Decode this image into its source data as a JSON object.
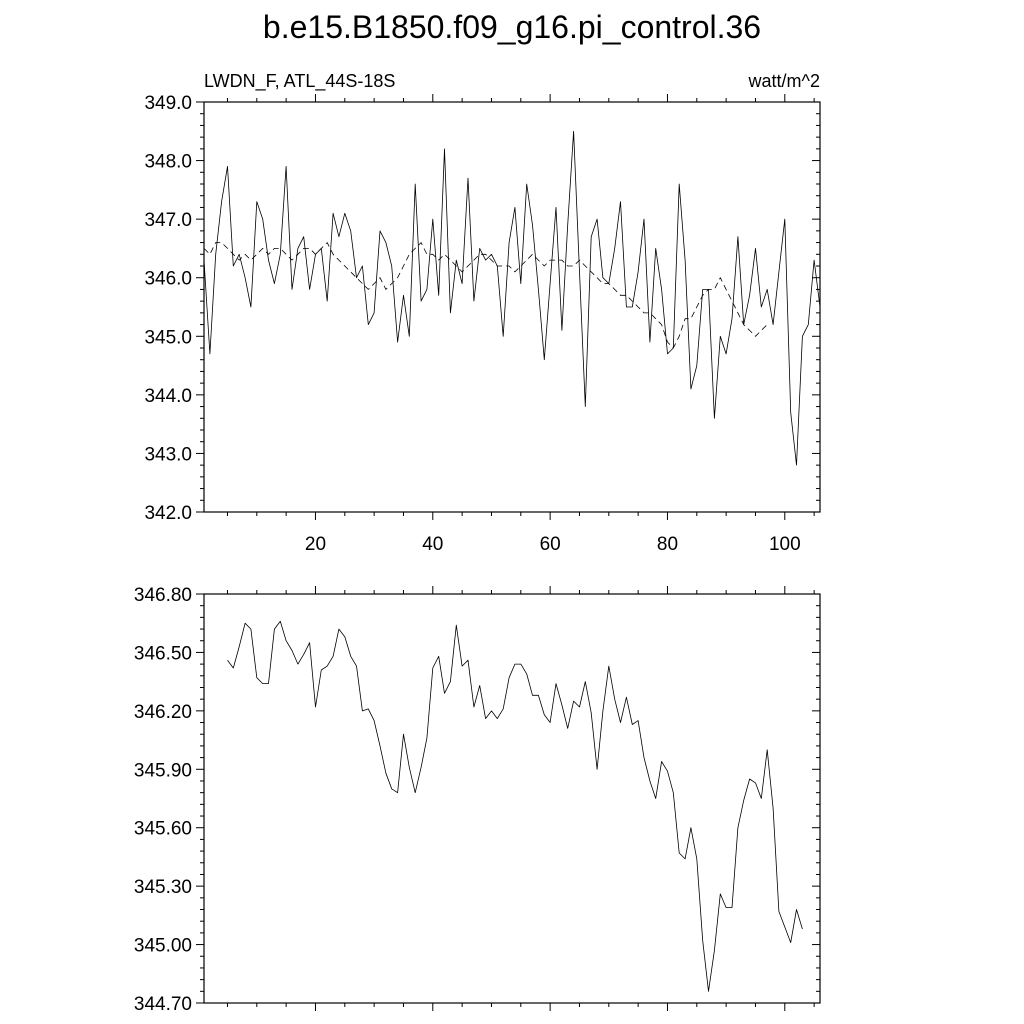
{
  "title": "b.e15.B1850.f09_g16.pi_control.36",
  "chart_data": [
    {
      "type": "line",
      "left_label": "LWDN_F, ATL_44S-18S",
      "right_label": "watt/m^2",
      "ylim": [
        342.0,
        349.0
      ],
      "yticks": [
        "342.0",
        "343.0",
        "344.0",
        "345.0",
        "346.0",
        "347.0",
        "348.0",
        "349.0"
      ],
      "xlim": [
        1,
        106
      ],
      "xticks": [
        "20",
        "40",
        "60",
        "80",
        "100"
      ],
      "series": [
        {
          "style": "solid",
          "x_start": 1,
          "values": [
            346.3,
            344.7,
            346.4,
            347.3,
            347.9,
            346.2,
            346.4,
            346.0,
            345.5,
            347.3,
            347.0,
            346.3,
            345.9,
            346.4,
            347.9,
            345.8,
            346.5,
            346.7,
            345.8,
            346.4,
            346.5,
            345.6,
            347.1,
            346.7,
            347.1,
            346.8,
            346.0,
            346.2,
            345.2,
            345.4,
            346.8,
            346.6,
            346.2,
            344.9,
            345.7,
            345.0,
            347.6,
            345.6,
            345.8,
            347.0,
            345.7,
            348.2,
            345.4,
            346.3,
            345.9,
            347.7,
            345.6,
            346.5,
            346.3,
            346.4,
            346.2,
            345.0,
            346.6,
            347.2,
            345.9,
            347.6,
            346.9,
            345.8,
            344.6,
            345.9,
            347.2,
            345.1,
            346.9,
            348.5,
            346.1,
            343.8,
            346.7,
            347.0,
            346.0,
            345.9,
            346.5,
            347.3,
            345.5,
            345.5,
            346.1,
            347.0,
            344.9,
            346.5,
            345.8,
            344.7,
            344.8,
            347.6,
            346.3,
            344.1,
            344.5,
            345.8,
            345.8,
            343.6,
            345.0,
            344.7,
            345.3,
            346.7,
            345.2,
            345.7,
            346.5,
            345.5,
            345.8,
            345.2,
            346.1,
            347.0,
            343.7,
            342.8,
            345.0,
            345.2,
            346.3,
            345.5
          ]
        },
        {
          "style": "dashed",
          "x_start": 1,
          "values": [
            346.5,
            346.4,
            346.6,
            346.6,
            346.5,
            346.4,
            346.3,
            346.4,
            346.3,
            346.4,
            346.5,
            346.4,
            346.5,
            346.5,
            346.4,
            346.3,
            346.4,
            346.5,
            346.5,
            346.4,
            346.5,
            346.6,
            346.4,
            346.3,
            346.2,
            346.1,
            346.0,
            345.9,
            345.8,
            345.9,
            346.0,
            345.8,
            345.9,
            346.0,
            346.2,
            346.4,
            346.5,
            346.6,
            346.4,
            346.4,
            346.3,
            346.4,
            346.3,
            346.2,
            346.1,
            346.2,
            346.3,
            346.4,
            346.4,
            346.3,
            346.2,
            346.2,
            346.2,
            346.1,
            346.2,
            346.3,
            346.4,
            346.3,
            346.2,
            346.3,
            346.3,
            346.3,
            346.2,
            346.2,
            346.3,
            346.2,
            346.1,
            346.0,
            345.9,
            345.9,
            345.8,
            345.7,
            345.7,
            345.6,
            345.5,
            345.4,
            345.4,
            345.3,
            345.2,
            344.9,
            344.8,
            345.0,
            345.3,
            345.3,
            345.5,
            345.7,
            345.8,
            345.8,
            346.0,
            345.8,
            345.6,
            345.4,
            345.2,
            345.1,
            345.0,
            345.1,
            345.2
          ]
        }
      ]
    },
    {
      "type": "line",
      "ylim": [
        344.7,
        346.8
      ],
      "yticks": [
        "344.70",
        "345.00",
        "345.30",
        "345.60",
        "345.90",
        "346.20",
        "346.50",
        "346.80"
      ],
      "xlim": [
        1,
        106
      ],
      "series": [
        {
          "style": "solid",
          "x_start": 5,
          "values": [
            346.46,
            346.42,
            346.53,
            346.65,
            346.62,
            346.37,
            346.34,
            346.34,
            346.62,
            346.66,
            346.56,
            346.51,
            346.44,
            346.49,
            346.55,
            346.22,
            346.41,
            346.43,
            346.48,
            346.62,
            346.58,
            346.48,
            346.43,
            346.2,
            346.21,
            346.15,
            346.02,
            345.88,
            345.8,
            345.78,
            346.08,
            345.91,
            345.78,
            345.91,
            346.06,
            346.42,
            346.48,
            346.29,
            346.35,
            346.64,
            346.43,
            346.46,
            346.22,
            346.33,
            346.16,
            346.2,
            346.16,
            346.21,
            346.37,
            346.44,
            346.44,
            346.39,
            346.28,
            346.28,
            346.18,
            346.14,
            346.34,
            346.23,
            346.11,
            346.25,
            346.22,
            346.35,
            346.19,
            345.9,
            346.2,
            346.43,
            346.26,
            346.14,
            346.27,
            346.13,
            346.15,
            345.96,
            345.84,
            345.75,
            345.94,
            345.89,
            345.78,
            345.47,
            345.44,
            345.6,
            345.44,
            345.02,
            344.76,
            344.97,
            345.26,
            345.19,
            345.19,
            345.6,
            345.74,
            345.85,
            345.83,
            345.75,
            346.0,
            345.7,
            345.17,
            345.09,
            345.01,
            345.18,
            345.08
          ]
        }
      ]
    }
  ]
}
